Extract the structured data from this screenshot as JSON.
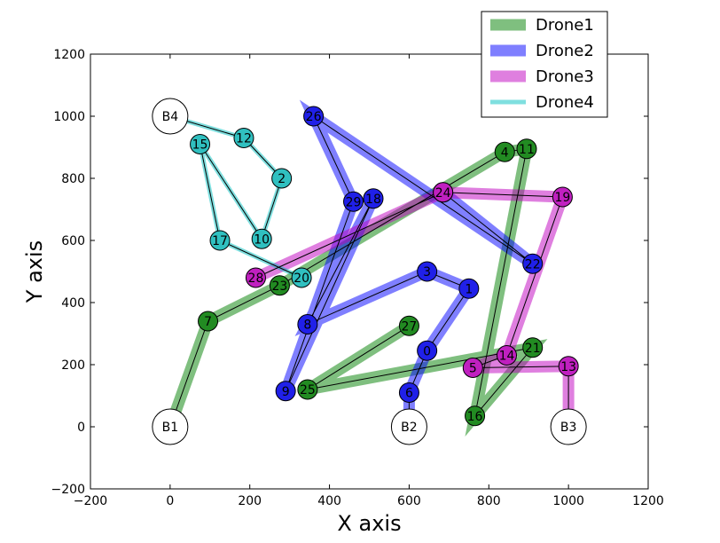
{
  "chart_data": {
    "type": "line",
    "xlabel": "X axis",
    "ylabel": "Y axis",
    "xlim": [
      -200,
      1200
    ],
    "ylim": [
      -200,
      1200
    ],
    "xticks": [
      -200,
      0,
      200,
      400,
      600,
      800,
      1000,
      1200
    ],
    "yticks": [
      -200,
      0,
      200,
      400,
      600,
      800,
      1000,
      1200
    ],
    "grid": false,
    "legend_position": "top-right",
    "bases": [
      {
        "label": "B1",
        "x": 0,
        "y": 0
      },
      {
        "label": "B2",
        "x": 600,
        "y": 0
      },
      {
        "label": "B3",
        "x": 1000,
        "y": 0
      },
      {
        "label": "B4",
        "x": 0,
        "y": 1000
      }
    ],
    "series": [
      {
        "name": "Drone1",
        "color": "#008000",
        "node_color": "#228B22",
        "route": [
          {
            "label": "B1",
            "x": 0,
            "y": 0
          },
          {
            "label": "7",
            "x": 95,
            "y": 340
          },
          {
            "label": "23",
            "x": 275,
            "y": 455
          },
          {
            "label": "4",
            "x": 840,
            "y": 885
          },
          {
            "label": "11",
            "x": 895,
            "y": 895
          },
          {
            "label": "16",
            "x": 765,
            "y": 35
          },
          {
            "label": "21",
            "x": 910,
            "y": 255
          },
          {
            "label": "25",
            "x": 345,
            "y": 120
          },
          {
            "label": "27",
            "x": 600,
            "y": 325
          }
        ]
      },
      {
        "name": "Drone2",
        "color": "#0000FF",
        "node_color": "#2020E8",
        "route": [
          {
            "label": "B2",
            "x": 600,
            "y": 0
          },
          {
            "label": "6",
            "x": 600,
            "y": 110
          },
          {
            "label": "0",
            "x": 645,
            "y": 245
          },
          {
            "label": "1",
            "x": 750,
            "y": 445
          },
          {
            "label": "3",
            "x": 645,
            "y": 500
          },
          {
            "label": "8",
            "x": 345,
            "y": 330
          },
          {
            "label": "18",
            "x": 510,
            "y": 735
          },
          {
            "label": "9",
            "x": 290,
            "y": 115
          },
          {
            "label": "29",
            "x": 460,
            "y": 725
          },
          {
            "label": "26",
            "x": 360,
            "y": 1000
          },
          {
            "label": "22",
            "x": 910,
            "y": 525
          },
          {
            "label": "24",
            "x": 685,
            "y": 755
          }
        ]
      },
      {
        "name": "Drone3",
        "color": "#BF00BF",
        "node_color": "#C020C0",
        "route": [
          {
            "label": "B3",
            "x": 1000,
            "y": 0
          },
          {
            "label": "13",
            "x": 1000,
            "y": 195
          },
          {
            "label": "5",
            "x": 760,
            "y": 190
          },
          {
            "label": "14",
            "x": 845,
            "y": 230
          },
          {
            "label": "19",
            "x": 985,
            "y": 740
          },
          {
            "label": "24",
            "x": 685,
            "y": 755
          },
          {
            "label": "28",
            "x": 215,
            "y": 480
          }
        ]
      },
      {
        "name": "Drone4",
        "color": "#00BFBF",
        "node_color": "#30C0C0",
        "route": [
          {
            "label": "B4",
            "x": 0,
            "y": 1000
          },
          {
            "label": "12",
            "x": 185,
            "y": 930
          },
          {
            "label": "2",
            "x": 280,
            "y": 800
          },
          {
            "label": "10",
            "x": 230,
            "y": 605
          },
          {
            "label": "15",
            "x": 75,
            "y": 910
          },
          {
            "label": "17",
            "x": 125,
            "y": 600
          },
          {
            "label": "20",
            "x": 330,
            "y": 480
          }
        ]
      }
    ]
  }
}
